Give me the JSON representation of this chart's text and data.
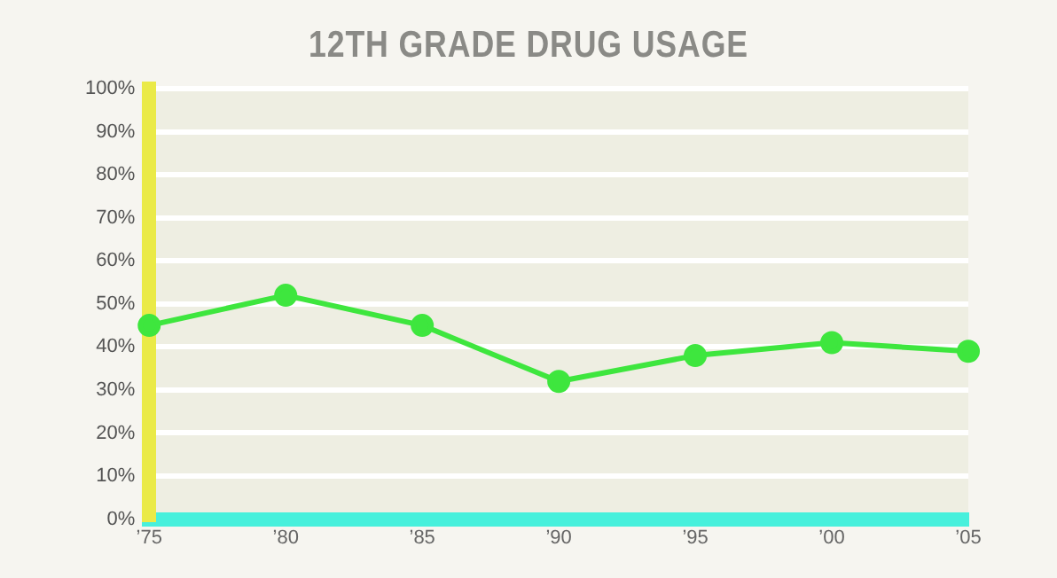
{
  "chart_data": {
    "type": "line",
    "title": "12TH GRADE DRUG USAGE",
    "categories": [
      "’75",
      "’80",
      "’85",
      "’90",
      "’95",
      "’00",
      "’05"
    ],
    "series": [
      {
        "color": "#3ee63e",
        "values": [
          45,
          52,
          45,
          32,
          38,
          41,
          39
        ]
      }
    ],
    "ylim": [
      0,
      100
    ],
    "yticks": [
      {
        "value": 0,
        "label": "0%"
      },
      {
        "value": 10,
        "label": "10%"
      },
      {
        "value": 20,
        "label": "20%"
      },
      {
        "value": 30,
        "label": "30%"
      },
      {
        "value": 40,
        "label": "40%"
      },
      {
        "value": 50,
        "label": "50%"
      },
      {
        "value": 60,
        "label": "60%"
      },
      {
        "value": 70,
        "label": "70%"
      },
      {
        "value": 80,
        "label": "80%"
      },
      {
        "value": 90,
        "label": "90%"
      },
      {
        "value": 100,
        "label": "100%"
      }
    ],
    "grid": "y",
    "legend": false,
    "marker": "circle",
    "line_style": "solid"
  }
}
